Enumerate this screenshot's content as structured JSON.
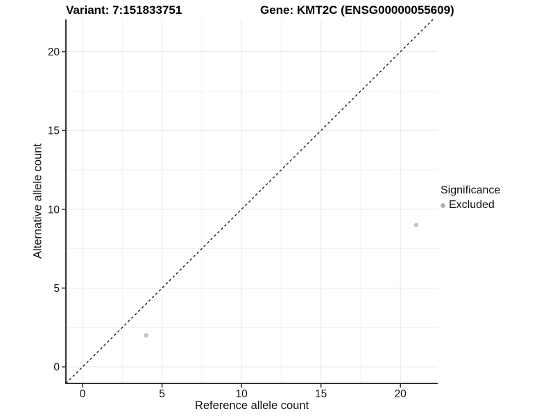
{
  "chart_data": {
    "type": "scatter",
    "title_left": "Variant: 7:151833751",
    "title_right": "Gene: KMT2C (ENSG00000055609)",
    "xlabel": "Reference allele count",
    "ylabel": "Alternative allele count",
    "xlim": [
      -1.05,
      22.35
    ],
    "ylim": [
      -1.05,
      22.05
    ],
    "x_ticks": [
      0,
      5,
      10,
      15,
      20
    ],
    "y_ticks": [
      0,
      5,
      10,
      15,
      20
    ],
    "x_minor_gridlines": [
      2.5,
      7.5,
      12.5,
      17.5
    ],
    "y_minor_gridlines": [
      2.5,
      7.5,
      12.5,
      17.5
    ],
    "grid": "major+minor",
    "legend_position": "right",
    "legend": {
      "title": "Significance",
      "entries": [
        {
          "label": "Excluded",
          "color": "#b3b3b3"
        }
      ]
    },
    "series": [
      {
        "name": "Excluded",
        "color": "#c3c3c3",
        "points": [
          {
            "x": 4,
            "y": 2
          },
          {
            "x": 21,
            "y": 9
          }
        ]
      }
    ],
    "reference_line": {
      "kind": "identity y=x",
      "style": "dashed",
      "color": "#1a1a1a"
    }
  },
  "colors": {
    "background": "#ffffff",
    "grid_major": "#e6e6e6",
    "grid_minor": "#f1f1f1",
    "axis_line": "#333333",
    "tick_mark": "#333333",
    "tick_text": "#111111"
  }
}
